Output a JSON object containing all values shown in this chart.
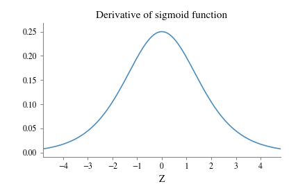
{
  "title": "Derivative of sigmoid function",
  "xlabel": "Z",
  "xlim": [
    -4.8,
    4.8
  ],
  "ylim": [
    -0.008,
    0.268
  ],
  "yticks": [
    0.0,
    0.05,
    0.1,
    0.15,
    0.2,
    0.25
  ],
  "xticks": [
    -4,
    -3,
    -2,
    -1,
    0,
    1,
    2,
    3,
    4
  ],
  "line_color": "#4f8fbf",
  "line_width": 1.2,
  "background_color": "#ffffff",
  "title_fontsize": 11,
  "label_fontsize": 10,
  "tick_fontsize": 8.5,
  "spine_color": "#888888"
}
